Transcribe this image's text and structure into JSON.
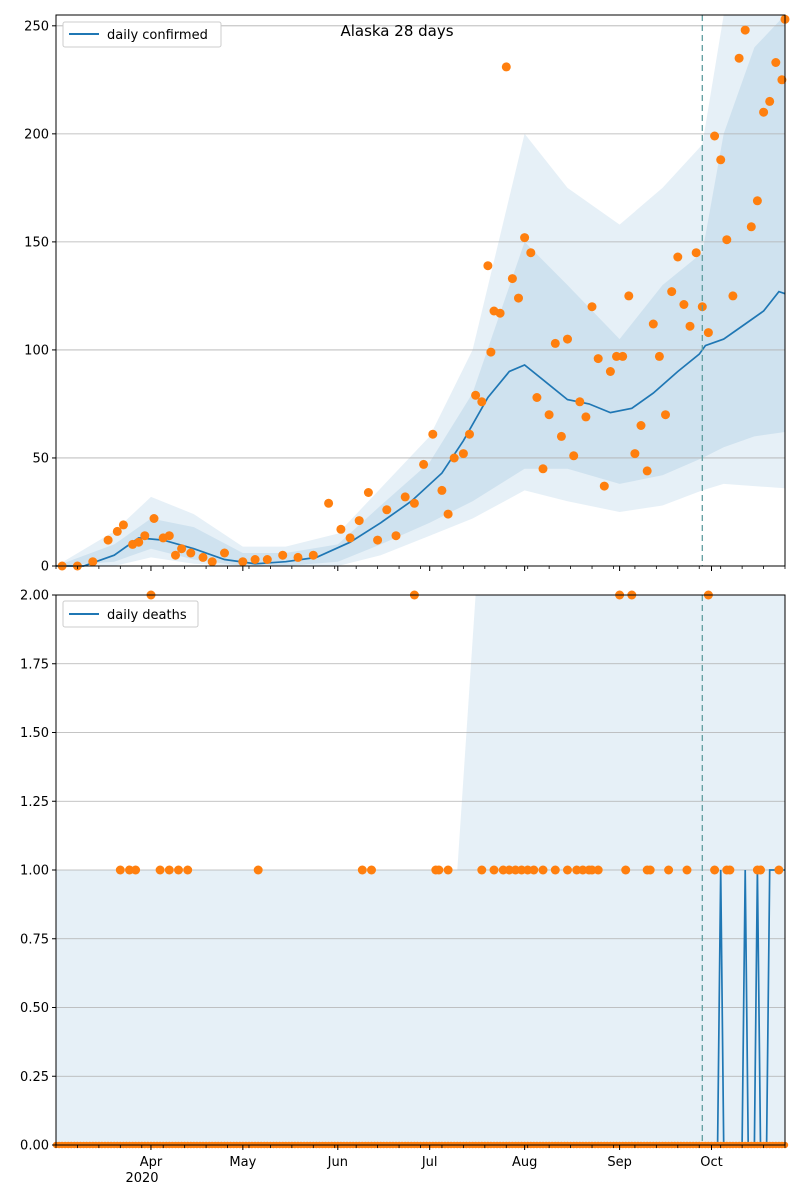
{
  "colors": {
    "line": "#1f77b4",
    "points": "#ff7f0e",
    "band": "#1f77b4",
    "grid": "#b0b0b0",
    "forecast_line": "#5f9ea0"
  },
  "chart_data": [
    {
      "type": "line",
      "title": "Alaska 28 days",
      "legend": {
        "label": "daily confirmed",
        "placement": "top-left"
      },
      "ylim": [
        0,
        255
      ],
      "y_ticks": [
        0,
        50,
        100,
        150,
        200,
        250
      ],
      "y_tick_labels": [
        "0",
        "50",
        "100",
        "150",
        "200",
        "250"
      ],
      "grid": "y",
      "x_start": "2020-03-01",
      "x_end": "2020-10-25",
      "forecast_start": "2020-09-28",
      "series": [
        {
          "name": "daily confirmed",
          "kind": "line",
          "x": [
            "2020-03-01",
            "2020-03-10",
            "2020-03-20",
            "2020-03-28",
            "2020-04-05",
            "2020-04-15",
            "2020-04-25",
            "2020-05-05",
            "2020-05-15",
            "2020-05-25",
            "2020-06-05",
            "2020-06-15",
            "2020-06-25",
            "2020-07-05",
            "2020-07-12",
            "2020-07-20",
            "2020-07-27",
            "2020-08-01",
            "2020-08-08",
            "2020-08-15",
            "2020-08-22",
            "2020-08-29",
            "2020-09-05",
            "2020-09-12",
            "2020-09-20",
            "2020-09-27",
            "2020-09-29",
            "2020-10-05",
            "2020-10-12",
            "2020-10-18",
            "2020-10-23",
            "2020-10-25"
          ],
          "values": [
            0,
            0,
            5,
            13,
            12,
            8,
            3,
            1,
            2,
            4,
            11,
            20,
            30,
            43,
            58,
            78,
            90,
            93,
            85,
            77,
            75,
            71,
            73,
            80,
            90,
            98,
            102,
            105,
            112,
            118,
            127,
            126
          ]
        },
        {
          "name": "observed",
          "kind": "scatter",
          "x": [
            "2020-03-03",
            "2020-03-08",
            "2020-03-13",
            "2020-03-18",
            "2020-03-21",
            "2020-03-23",
            "2020-03-26",
            "2020-03-28",
            "2020-03-30",
            "2020-04-02",
            "2020-04-05",
            "2020-04-07",
            "2020-04-09",
            "2020-04-11",
            "2020-04-14",
            "2020-04-18",
            "2020-04-21",
            "2020-04-25",
            "2020-05-01",
            "2020-05-05",
            "2020-05-09",
            "2020-05-14",
            "2020-05-19",
            "2020-05-24",
            "2020-05-29",
            "2020-06-02",
            "2020-06-05",
            "2020-06-08",
            "2020-06-11",
            "2020-06-14",
            "2020-06-17",
            "2020-06-20",
            "2020-06-23",
            "2020-06-26",
            "2020-06-29",
            "2020-07-02",
            "2020-07-05",
            "2020-07-07",
            "2020-07-09",
            "2020-07-12",
            "2020-07-14",
            "2020-07-16",
            "2020-07-18",
            "2020-07-20",
            "2020-07-21",
            "2020-07-22",
            "2020-07-24",
            "2020-07-26",
            "2020-07-28",
            "2020-07-30",
            "2020-08-01",
            "2020-08-03",
            "2020-08-05",
            "2020-08-07",
            "2020-08-09",
            "2020-08-11",
            "2020-08-13",
            "2020-08-15",
            "2020-08-17",
            "2020-08-19",
            "2020-08-21",
            "2020-08-23",
            "2020-08-25",
            "2020-08-27",
            "2020-08-29",
            "2020-08-31",
            "2020-09-02",
            "2020-09-04",
            "2020-09-06",
            "2020-09-08",
            "2020-09-10",
            "2020-09-12",
            "2020-09-14",
            "2020-09-16",
            "2020-09-18",
            "2020-09-20",
            "2020-09-22",
            "2020-09-24",
            "2020-09-26",
            "2020-09-28",
            "2020-09-30",
            "2020-10-02",
            "2020-10-04",
            "2020-10-06",
            "2020-10-08",
            "2020-10-10",
            "2020-10-12",
            "2020-10-14",
            "2020-10-16",
            "2020-10-18",
            "2020-10-20",
            "2020-10-22",
            "2020-10-24",
            "2020-10-25"
          ],
          "values": [
            0,
            0,
            2,
            12,
            16,
            19,
            10,
            11,
            14,
            22,
            13,
            14,
            5,
            8,
            6,
            4,
            2,
            6,
            2,
            3,
            3,
            5,
            4,
            5,
            29,
            17,
            13,
            21,
            34,
            12,
            26,
            14,
            32,
            29,
            47,
            61,
            35,
            24,
            50,
            52,
            61,
            79,
            76,
            139,
            99,
            118,
            117,
            231,
            133,
            124,
            152,
            145,
            78,
            45,
            70,
            103,
            60,
            105,
            51,
            76,
            69,
            120,
            96,
            37,
            90,
            97,
            97,
            125,
            52,
            65,
            44,
            112,
            97,
            70,
            127,
            143,
            121,
            111,
            145,
            120,
            108,
            199,
            188,
            151,
            125,
            235,
            248,
            157,
            169,
            210,
            215,
            233,
            225,
            253
          ]
        }
      ],
      "bands": [
        {
          "x": [
            "2020-03-01",
            "2020-03-20",
            "2020-04-01",
            "2020-04-15",
            "2020-05-01",
            "2020-05-15",
            "2020-06-01",
            "2020-06-15",
            "2020-07-01",
            "2020-07-15",
            "2020-08-01",
            "2020-08-15",
            "2020-09-01",
            "2020-09-15",
            "2020-09-28",
            "2020-10-05",
            "2020-10-15",
            "2020-10-25"
          ],
          "low": [
            0,
            2,
            8,
            3,
            0,
            0,
            2,
            10,
            20,
            30,
            45,
            45,
            38,
            42,
            50,
            55,
            60,
            62
          ],
          "high": [
            0,
            10,
            22,
            18,
            6,
            6,
            10,
            28,
            48,
            80,
            150,
            130,
            105,
            130,
            145,
            200,
            240,
            255
          ]
        },
        {
          "x": [
            "2020-03-01",
            "2020-03-20",
            "2020-04-01",
            "2020-04-15",
            "2020-05-01",
            "2020-05-15",
            "2020-06-01",
            "2020-06-15",
            "2020-07-01",
            "2020-07-15",
            "2020-08-01",
            "2020-08-15",
            "2020-09-01",
            "2020-09-15",
            "2020-09-28",
            "2020-10-05",
            "2020-10-15",
            "2020-10-25"
          ],
          "low": [
            0,
            0,
            4,
            1,
            0,
            0,
            0,
            5,
            14,
            22,
            35,
            30,
            25,
            28,
            35,
            38,
            37,
            36
          ],
          "high": [
            0,
            16,
            32,
            24,
            9,
            9,
            15,
            36,
            60,
            100,
            200,
            175,
            158,
            175,
            195,
            255,
            255,
            255
          ]
        }
      ]
    },
    {
      "type": "line",
      "legend": {
        "label": "daily deaths",
        "placement": "top-left"
      },
      "ylim": [
        0,
        2
      ],
      "y_ticks": [
        0,
        0.25,
        0.5,
        0.75,
        1,
        1.25,
        1.5,
        1.75,
        2
      ],
      "y_tick_labels": [
        "0.00",
        "0.25",
        "0.50",
        "0.75",
        "1.00",
        "1.25",
        "1.50",
        "1.75",
        "2.00"
      ],
      "x_tick_labels": [
        "Apr",
        "May",
        "Jun",
        "Jul",
        "Aug",
        "Sep",
        "Oct"
      ],
      "x_tick_dates": [
        "2020-04-01",
        "2020-05-01",
        "2020-06-01",
        "2020-07-01",
        "2020-08-01",
        "2020-09-01",
        "2020-10-01"
      ],
      "x_year_label": "2020",
      "grid": "y",
      "x_start": "2020-03-01",
      "x_end": "2020-10-25",
      "forecast_start": "2020-09-28",
      "series": [
        {
          "name": "daily deaths",
          "kind": "line",
          "x": [
            "2020-03-01",
            "2020-10-01",
            "2020-10-03",
            "2020-10-04",
            "2020-10-05",
            "2020-10-11",
            "2020-10-12",
            "2020-10-13",
            "2020-10-15",
            "2020-10-16",
            "2020-10-17",
            "2020-10-19",
            "2020-10-20",
            "2020-10-21",
            "2020-10-25"
          ],
          "values": [
            0,
            0,
            0,
            1,
            0,
            0,
            1,
            0,
            0,
            1,
            0,
            0,
            1,
            1,
            1
          ]
        },
        {
          "name": "observed",
          "kind": "scatter",
          "x": [
            "2020-03-22",
            "2020-03-25",
            "2020-03-27",
            "2020-04-04",
            "2020-04-07",
            "2020-04-10",
            "2020-04-13",
            "2020-05-06",
            "2020-06-09",
            "2020-06-12",
            "2020-07-03",
            "2020-07-04",
            "2020-07-07",
            "2020-07-18",
            "2020-07-22",
            "2020-07-25",
            "2020-07-27",
            "2020-07-29",
            "2020-07-31",
            "2020-08-02",
            "2020-08-04",
            "2020-08-07",
            "2020-08-11",
            "2020-08-15",
            "2020-08-18",
            "2020-08-20",
            "2020-08-22",
            "2020-08-23",
            "2020-08-25",
            "2020-09-03",
            "2020-09-10",
            "2020-09-11",
            "2020-09-17",
            "2020-09-23",
            "2020-10-02",
            "2020-10-06",
            "2020-10-07",
            "2020-10-16",
            "2020-10-17",
            "2020-10-23",
            "2020-04-01",
            "2020-06-26",
            "2020-09-01",
            "2020-09-05",
            "2020-09-30"
          ],
          "values": [
            1,
            1,
            1,
            1,
            1,
            1,
            1,
            1,
            1,
            1,
            1,
            1,
            1,
            1,
            1,
            1,
            1,
            1,
            1,
            1,
            1,
            1,
            1,
            1,
            1,
            1,
            1,
            1,
            1,
            1,
            1,
            1,
            1,
            1,
            1,
            1,
            1,
            1,
            1,
            1,
            2,
            2,
            2,
            2,
            2
          ]
        }
      ],
      "bands": [
        {
          "x": [
            "2020-03-01",
            "2020-03-18",
            "2020-03-29",
            "2020-04-29",
            "2020-06-11",
            "2020-07-10",
            "2020-07-16",
            "2020-10-25"
          ],
          "low": [
            0,
            0,
            0,
            0,
            0,
            0,
            0,
            0
          ],
          "high": [
            1,
            1,
            1,
            1,
            1,
            1,
            2,
            2
          ]
        }
      ]
    }
  ]
}
